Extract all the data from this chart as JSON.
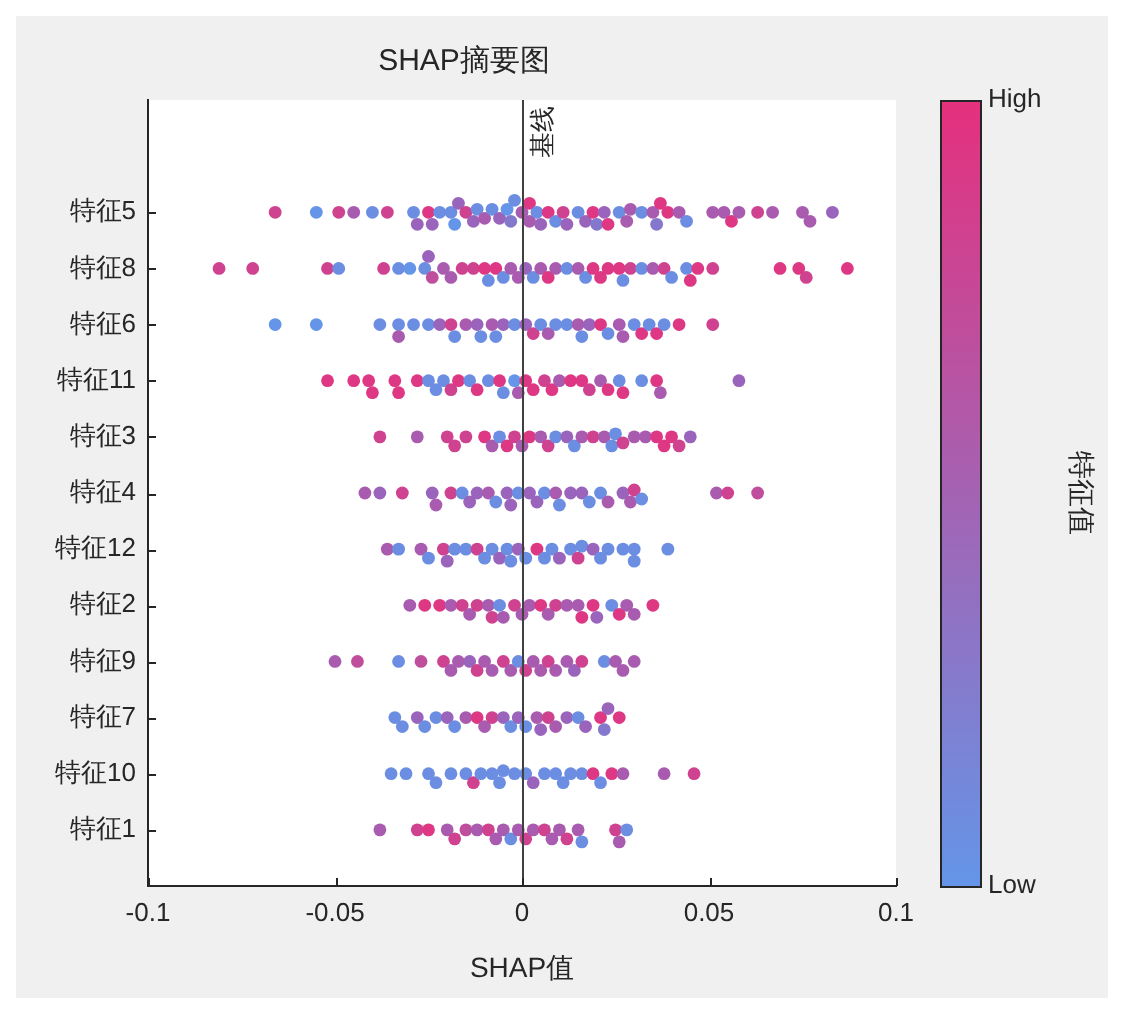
{
  "chart_data": {
    "type": "scatter",
    "title": "SHAP摘要图",
    "xlabel": "SHAP值",
    "clabel": "特征值",
    "orientation": "horizontal",
    "categories": [
      "特征5",
      "特征8",
      "特征6",
      "特征11",
      "特征3",
      "特征4",
      "特征12",
      "特征2",
      "特征9",
      "特征7",
      "特征10",
      "特征1"
    ],
    "xlim": [
      -0.1,
      0.1
    ],
    "xticks": [
      -0.1,
      -0.05,
      0,
      0.05,
      0.1
    ],
    "clim": [
      0,
      1
    ],
    "cticks": [
      {
        "value": 0,
        "label": "Low"
      },
      {
        "value": 1,
        "label": "High"
      }
    ],
    "grid": false,
    "legend": false,
    "marker": "circle",
    "ref_lines": [
      {
        "axis": "x",
        "value": 0,
        "label": "基线",
        "color": "#404040"
      }
    ],
    "series": [
      {
        "x": [
          "特征5",
          "特征5",
          "特征5",
          "特征5",
          "特征5",
          "特征5",
          "特征5",
          "特征5",
          "特征5",
          "特征5",
          "特征5",
          "特征5",
          "特征5",
          "特征5",
          "特征5",
          "特征5",
          "特征5",
          "特征5",
          "特征5",
          "特征5",
          "特征5",
          "特征5",
          "特征5",
          "特征5",
          "特征5",
          "特征5",
          "特征5",
          "特征5",
          "特征5",
          "特征5",
          "特征5",
          "特征5",
          "特征5",
          "特征5",
          "特征5",
          "特征5",
          "特征5",
          "特征5",
          "特征5",
          "特征5",
          "特征5",
          "特征5",
          "特征5",
          "特征5",
          "特征5",
          "特征5",
          "特征5",
          "特征5",
          "特征5",
          "特征5",
          "特征5",
          "特征5",
          "特征5",
          "特征5",
          "特征5",
          "特征5",
          "特征5"
        ],
        "values": [
          -0.066,
          -0.055,
          -0.049,
          -0.045,
          -0.04,
          -0.036,
          -0.029,
          -0.028,
          -0.025,
          -0.024,
          -0.022,
          -0.019,
          -0.018,
          -0.017,
          -0.015,
          -0.013,
          -0.012,
          -0.01,
          -0.008,
          -0.006,
          -0.004,
          -0.003,
          -0.002,
          0,
          0.002,
          0.002,
          0.004,
          0.005,
          0.007,
          0.009,
          0.011,
          0.012,
          0.015,
          0.017,
          0.019,
          0.02,
          0.022,
          0.023,
          0.026,
          0.028,
          0.029,
          0.032,
          0.035,
          0.036,
          0.037,
          0.039,
          0.042,
          0.044,
          0.051,
          0.054,
          0.056,
          0.058,
          0.063,
          0.067,
          0.075,
          0.077,
          0.083
        ],
        "colors": [
          "#cf4290",
          "#6495e8",
          "#cf4290",
          "#a95bb0",
          "#6c8ee2",
          "#cf4290",
          "#6c8ee2",
          "#9a63bc",
          "#de3784",
          "#9a63bc",
          "#6c8ee2",
          "#6c8ee2",
          "#6495e8",
          "#9a63bc",
          "#cf4290",
          "#9a63bc",
          "#6c8ee2",
          "#a95bb0",
          "#6c8ee2",
          "#9a63bc",
          "#6495e8",
          "#8478cc",
          "#6c8ee2",
          "#a95bb0",
          "#a95bb0",
          "#de3784",
          "#6c8ee2",
          "#9a63bc",
          "#de3784",
          "#6c8ee2",
          "#cf4290",
          "#9a63bc",
          "#6c8ee2",
          "#9a63bc",
          "#de3784",
          "#8478cc",
          "#9a63bc",
          "#de3784",
          "#6c8ee2",
          "#a95bb0",
          "#a95bb0",
          "#6c8ee2",
          "#a95bb0",
          "#8478cc",
          "#de3784",
          "#de3784",
          "#a95bb0",
          "#6c8ee2",
          "#a95bb0",
          "#a95bb0",
          "#de3784",
          "#a95bb0",
          "#cf4290",
          "#a95bb0",
          "#a95bb0",
          "#a95bb0",
          "#9a63bc"
        ]
      },
      {
        "x": [
          "特征8",
          "特征8",
          "特征8",
          "特征8",
          "特征8",
          "特征8",
          "特征8",
          "特征8",
          "特征8",
          "特征8",
          "特征8",
          "特征8",
          "特征8",
          "特征8",
          "特征8",
          "特征8",
          "特征8",
          "特征8",
          "特征8",
          "特征8",
          "特征8",
          "特征8",
          "特征8",
          "特征8",
          "特征8",
          "特征8",
          "特征8",
          "特征8",
          "特征8",
          "特征8",
          "特征8",
          "特征8",
          "特征8",
          "特征8",
          "特征8",
          "特征8",
          "特征8",
          "特征8",
          "特征8",
          "特征8",
          "特征8",
          "特征8",
          "特征8",
          "特征8",
          "特征8",
          "特征8"
        ],
        "values": [
          -0.081,
          -0.072,
          -0.052,
          -0.049,
          -0.037,
          -0.033,
          -0.03,
          -0.026,
          -0.024,
          -0.025,
          -0.021,
          -0.019,
          -0.016,
          -0.013,
          -0.01,
          -0.009,
          -0.007,
          -0.005,
          -0.003,
          -0.001,
          0.001,
          0.003,
          0.005,
          0.007,
          0.009,
          0.012,
          0.015,
          0.017,
          0.019,
          0.021,
          0.023,
          0.026,
          0.027,
          0.029,
          0.032,
          0.035,
          0.038,
          0.04,
          0.044,
          0.045,
          0.047,
          0.051,
          0.069,
          0.074,
          0.076,
          0.087
        ],
        "colors": [
          "#cf4290",
          "#cf4290",
          "#cf4290",
          "#6c8ee2",
          "#cf4290",
          "#6c8ee2",
          "#6495e8",
          "#6c8ee2",
          "#bf4f9d",
          "#9a63bc",
          "#a95bb0",
          "#a95bb0",
          "#cf4290",
          "#cf4290",
          "#de3784",
          "#6c8ee2",
          "#de3784",
          "#6c8ee2",
          "#a95bb0",
          "#a95bb0",
          "#9a63bc",
          "#6c8ee2",
          "#a95bb0",
          "#de3784",
          "#a95bb0",
          "#6c8ee2",
          "#a95bb0",
          "#6c8ee2",
          "#de3784",
          "#de3784",
          "#de3784",
          "#de3784",
          "#6c8ee2",
          "#cf4290",
          "#6c8ee2",
          "#a95bb0",
          "#cf4290",
          "#6c8ee2",
          "#6c8ee2",
          "#de3784",
          "#de3784",
          "#cf4290",
          "#de3784",
          "#de3784",
          "#cf4290",
          "#de3784"
        ]
      },
      {
        "x": [
          "特征6",
          "特征6",
          "特征6",
          "特征6",
          "特征6",
          "特征6",
          "特征6",
          "特征6",
          "特征6",
          "特征6",
          "特征6",
          "特征6",
          "特征6",
          "特征6",
          "特征6",
          "特征6",
          "特征6",
          "特征6",
          "特征6",
          "特征6",
          "特征6",
          "特征6",
          "特征6",
          "特征6",
          "特征6",
          "特征6",
          "特征6",
          "特征6",
          "特征6",
          "特征6",
          "特征6",
          "特征6",
          "特征6",
          "特征6",
          "特征6",
          "特征6",
          "特征6"
        ],
        "values": [
          -0.066,
          -0.055,
          -0.038,
          -0.033,
          -0.033,
          -0.029,
          -0.025,
          -0.022,
          -0.019,
          -0.018,
          -0.015,
          -0.012,
          -0.011,
          -0.008,
          -0.007,
          -0.005,
          -0.002,
          0.001,
          0.003,
          0.005,
          0.007,
          0.009,
          0.012,
          0.015,
          0.016,
          0.018,
          0.021,
          0.023,
          0.026,
          0.027,
          0.03,
          0.032,
          0.034,
          0.036,
          0.038,
          0.042,
          0.051
        ],
        "colors": [
          "#6495e8",
          "#6495e8",
          "#6c8ee2",
          "#6c8ee2",
          "#a95bb0",
          "#6c8ee2",
          "#6c8ee2",
          "#9a63bc",
          "#cf4290",
          "#6c8ee2",
          "#a95bb0",
          "#9a63bc",
          "#6c8ee2",
          "#a95bb0",
          "#6c8ee2",
          "#9a63bc",
          "#6c8ee2",
          "#9a63bc",
          "#cf4290",
          "#6c8ee2",
          "#a95bb0",
          "#6c8ee2",
          "#6c8ee2",
          "#a95bb0",
          "#6c8ee2",
          "#9a63bc",
          "#de3784",
          "#6c8ee2",
          "#a95bb0",
          "#a95bb0",
          "#6c8ee2",
          "#de3784",
          "#6c8ee2",
          "#de3784",
          "#6c8ee2",
          "#de3784",
          "#cf4290"
        ]
      },
      {
        "x": [
          "特征11",
          "特征11",
          "特征11",
          "特征11",
          "特征11",
          "特征11",
          "特征11",
          "特征11",
          "特征11",
          "特征11",
          "特征11",
          "特征11",
          "特征11",
          "特征11",
          "特征11",
          "特征11",
          "特征11",
          "特征11",
          "特征11",
          "特征11",
          "特征11",
          "特征11",
          "特征11",
          "特征11",
          "特征11",
          "特征11",
          "特征11",
          "特征11",
          "特征11",
          "特征11",
          "特征11",
          "特征11",
          "特征11",
          "特征11",
          "特征11"
        ],
        "values": [
          -0.052,
          -0.045,
          -0.041,
          -0.04,
          -0.034,
          -0.033,
          -0.028,
          -0.025,
          -0.023,
          -0.021,
          -0.019,
          -0.017,
          -0.014,
          -0.012,
          -0.009,
          -0.006,
          -0.005,
          -0.002,
          -0.001,
          0.001,
          0.003,
          0.006,
          0.008,
          0.01,
          0.013,
          0.016,
          0.018,
          0.021,
          0.023,
          0.026,
          0.027,
          0.032,
          0.036,
          0.037,
          0.058
        ],
        "colors": [
          "#de3784",
          "#de3784",
          "#de3784",
          "#de3784",
          "#de3784",
          "#de3784",
          "#de3784",
          "#6c8ee2",
          "#6c8ee2",
          "#6c8ee2",
          "#cf4290",
          "#de3784",
          "#6c8ee2",
          "#de3784",
          "#6c8ee2",
          "#de3784",
          "#6c8ee2",
          "#6495e8",
          "#a95bb0",
          "#de3784",
          "#de3784",
          "#cf4290",
          "#de3784",
          "#a95bb0",
          "#de3784",
          "#de3784",
          "#cf4290",
          "#a95bb0",
          "#de3784",
          "#6c8ee2",
          "#de3784",
          "#6c8ee2",
          "#de3784",
          "#a95bb0",
          "#9a63bc"
        ]
      },
      {
        "x": [
          "特征3",
          "特征3",
          "特征3",
          "特征3",
          "特征3",
          "特征3",
          "特征3",
          "特征3",
          "特征3",
          "特征3",
          "特征3",
          "特征3",
          "特征3",
          "特征3",
          "特征3",
          "特征3",
          "特征3",
          "特征3",
          "特征3",
          "特征3",
          "特征3",
          "特征3",
          "特征3",
          "特征3",
          "特征3",
          "特征3",
          "特征3",
          "特征3",
          "特征3",
          "特征3"
        ],
        "values": [
          -0.038,
          -0.028,
          -0.02,
          -0.018,
          -0.015,
          -0.01,
          -0.008,
          -0.006,
          -0.004,
          -0.002,
          0,
          0.002,
          0.005,
          0.007,
          0.009,
          0.012,
          0.014,
          0.016,
          0.019,
          0.022,
          0.024,
          0.025,
          0.027,
          0.03,
          0.033,
          0.036,
          0.038,
          0.04,
          0.042,
          0.045
        ],
        "colors": [
          "#cf4290",
          "#a95bb0",
          "#cf4290",
          "#cf4290",
          "#cf4290",
          "#de3784",
          "#a95bb0",
          "#6c8ee2",
          "#de3784",
          "#cf4290",
          "#a95bb0",
          "#de3784",
          "#a95bb0",
          "#cf4290",
          "#6c8ee2",
          "#9a63bc",
          "#6c8ee2",
          "#a95bb0",
          "#cf4290",
          "#a95bb0",
          "#6c8ee2",
          "#6c8ee2",
          "#cf4290",
          "#a95bb0",
          "#a95bb0",
          "#de3784",
          "#de3784",
          "#de3784",
          "#cf4290",
          "#9a63bc"
        ]
      },
      {
        "x": [
          "特征4",
          "特征4",
          "特征4",
          "特征4",
          "特征4",
          "特征4",
          "特征4",
          "特征4",
          "特征4",
          "特征4",
          "特征4",
          "特征4",
          "特征4",
          "特征4",
          "特征4",
          "特征4",
          "特征4",
          "特征4",
          "特征4",
          "特征4",
          "特征4",
          "特征4",
          "特征4",
          "特征4",
          "特征4",
          "特征4",
          "特征4",
          "特征4",
          "特征4",
          "特征4",
          "特征4"
        ],
        "values": [
          -0.042,
          -0.038,
          -0.032,
          -0.024,
          -0.023,
          -0.019,
          -0.016,
          -0.014,
          -0.012,
          -0.009,
          -0.007,
          -0.004,
          -0.003,
          -0.001,
          0.002,
          0.004,
          0.006,
          0.009,
          0.01,
          0.013,
          0.016,
          0.018,
          0.021,
          0.023,
          0.027,
          0.029,
          0.03,
          0.032,
          0.052,
          0.055,
          0.063
        ],
        "colors": [
          "#a95bb0",
          "#9a63bc",
          "#cf4290",
          "#9a63bc",
          "#a95bb0",
          "#cf4290",
          "#6c8ee2",
          "#9a63bc",
          "#9a63bc",
          "#a95bb0",
          "#6c8ee2",
          "#9a63bc",
          "#9a63bc",
          "#6c8ee2",
          "#9a63bc",
          "#9a63bc",
          "#6c8ee2",
          "#a95bb0",
          "#6c8ee2",
          "#9a63bc",
          "#9a63bc",
          "#6c8ee2",
          "#6c8ee2",
          "#a95bb0",
          "#9a63bc",
          "#a95bb0",
          "#cf4290",
          "#6c8ee2",
          "#a95bb0",
          "#cf4290",
          "#bf4f9d"
        ]
      },
      {
        "x": [
          "特征12",
          "特征12",
          "特征12",
          "特征12",
          "特征12",
          "特征12",
          "特征12",
          "特征12",
          "特征12",
          "特征12",
          "特征12",
          "特征12",
          "特征12",
          "特征12",
          "特征12",
          "特征12",
          "特征12",
          "特征12",
          "特征12",
          "特征12",
          "特征12",
          "特征12",
          "特征12",
          "特征12",
          "特征12",
          "特征12",
          "特征12",
          "特征12",
          "特征12",
          "特征12"
        ],
        "values": [
          -0.036,
          -0.033,
          -0.027,
          -0.025,
          -0.021,
          -0.02,
          -0.018,
          -0.015,
          -0.012,
          -0.01,
          -0.008,
          -0.006,
          -0.004,
          -0.003,
          -0.001,
          0.001,
          0.004,
          0.006,
          0.008,
          0.01,
          0.013,
          0.015,
          0.016,
          0.019,
          0.021,
          0.023,
          0.027,
          0.03,
          0.03,
          0.039
        ],
        "colors": [
          "#a95bb0",
          "#6c8ee2",
          "#a95bb0",
          "#6c8ee2",
          "#cf4290",
          "#9a63bc",
          "#6c8ee2",
          "#6c8ee2",
          "#cf4290",
          "#6c8ee2",
          "#6c8ee2",
          "#9a63bc",
          "#6c8ee2",
          "#6c8ee2",
          "#9a63bc",
          "#6c8ee2",
          "#de3784",
          "#6c8ee2",
          "#6c8ee2",
          "#9a63bc",
          "#6c8ee2",
          "#cf4290",
          "#6c8ee2",
          "#9a63bc",
          "#6c8ee2",
          "#6c8ee2",
          "#6c8ee2",
          "#6c8ee2",
          "#6c8ee2",
          "#6c8ee2"
        ]
      },
      {
        "x": [
          "特征2",
          "特征2",
          "特征2",
          "特征2",
          "特征2",
          "特征2",
          "特征2",
          "特征2",
          "特征2",
          "特征2",
          "特征2",
          "特征2",
          "特征2",
          "特征2",
          "特征2",
          "特征2",
          "特征2",
          "特征2",
          "特征2",
          "特征2",
          "特征2",
          "特征2",
          "特征2",
          "特征2",
          "特征2",
          "特征2",
          "特征2"
        ],
        "values": [
          -0.03,
          -0.026,
          -0.022,
          -0.019,
          -0.016,
          -0.014,
          -0.012,
          -0.009,
          -0.008,
          -0.006,
          -0.005,
          -0.002,
          0,
          0.002,
          0.005,
          0.007,
          0.009,
          0.012,
          0.015,
          0.016,
          0.019,
          0.02,
          0.024,
          0.026,
          0.028,
          0.03,
          0.035
        ],
        "colors": [
          "#a95bb0",
          "#de3784",
          "#de3784",
          "#a95bb0",
          "#cf4290",
          "#a95bb0",
          "#cf4290",
          "#a95bb0",
          "#cf4290",
          "#6c8ee2",
          "#a95bb0",
          "#cf4290",
          "#a95bb0",
          "#a95bb0",
          "#de3784",
          "#a95bb0",
          "#cf4290",
          "#a95bb0",
          "#a95bb0",
          "#de3784",
          "#de3784",
          "#9a63bc",
          "#6c8ee2",
          "#de3784",
          "#a95bb0",
          "#a95bb0",
          "#de3784"
        ]
      },
      {
        "x": [
          "特征9",
          "特征9",
          "特征9",
          "特征9",
          "特征9",
          "特征9",
          "特征9",
          "特征9",
          "特征9",
          "特征9",
          "特征9",
          "特征9",
          "特征9",
          "特征9",
          "特征9",
          "特征9",
          "特征9",
          "特征9",
          "特征9",
          "特征9",
          "特征9",
          "特征9",
          "特征9",
          "特征9",
          "特征9",
          "特征9"
        ],
        "values": [
          -0.05,
          -0.044,
          -0.033,
          -0.027,
          -0.021,
          -0.019,
          -0.017,
          -0.014,
          -0.012,
          -0.01,
          -0.008,
          -0.005,
          -0.003,
          -0.001,
          0.001,
          0.003,
          0.005,
          0.007,
          0.009,
          0.012,
          0.014,
          0.016,
          0.022,
          0.025,
          0.027,
          0.03
        ],
        "colors": [
          "#a95bb0",
          "#bf4f9d",
          "#6c8ee2",
          "#bf4f9d",
          "#cf4290",
          "#a95bb0",
          "#a95bb0",
          "#9a63bc",
          "#cf4290",
          "#a95bb0",
          "#a95bb0",
          "#cf4290",
          "#a95bb0",
          "#6c8ee2",
          "#cf4290",
          "#a95bb0",
          "#a95bb0",
          "#cf4290",
          "#a95bb0",
          "#a95bb0",
          "#9a63bc",
          "#cf4290",
          "#6c8ee2",
          "#a95bb0",
          "#a95bb0",
          "#a95bb0"
        ]
      },
      {
        "x": [
          "特征7",
          "特征7",
          "特征7",
          "特征7",
          "特征7",
          "特征7",
          "特征7",
          "特征7",
          "特征7",
          "特征7",
          "特征7",
          "特征7",
          "特征7",
          "特征7",
          "特征7",
          "特征7",
          "特征7",
          "特征7",
          "特征7",
          "特征7",
          "特征7",
          "特征7",
          "特征7",
          "特征7",
          "特征7",
          "特征7"
        ],
        "values": [
          -0.034,
          -0.032,
          -0.028,
          -0.026,
          -0.023,
          -0.02,
          -0.018,
          -0.015,
          -0.012,
          -0.01,
          -0.008,
          -0.005,
          -0.003,
          -0.001,
          0.001,
          0.004,
          0.005,
          0.007,
          0.009,
          0.012,
          0.015,
          0.017,
          0.021,
          0.022,
          0.023,
          0.026
        ],
        "colors": [
          "#6c8ee2",
          "#6c8ee2",
          "#9a63bc",
          "#6c8ee2",
          "#6c8ee2",
          "#9a63bc",
          "#6c8ee2",
          "#a95bb0",
          "#de3784",
          "#a95bb0",
          "#cf4290",
          "#9a63bc",
          "#6c8ee2",
          "#9a63bc",
          "#6c8ee2",
          "#a95bb0",
          "#9a63bc",
          "#cf4290",
          "#a95bb0",
          "#9a63bc",
          "#6c8ee2",
          "#9a63bc",
          "#de3784",
          "#8478cc",
          "#9a63bc",
          "#de3784"
        ]
      },
      {
        "x": [
          "特征10",
          "特征10",
          "特征10",
          "特征10",
          "特征10",
          "特征10",
          "特征10",
          "特征10",
          "特征10",
          "特征10",
          "特征10",
          "特征10",
          "特征10",
          "特征10",
          "特征10",
          "特征10",
          "特征10",
          "特征10",
          "特征10",
          "特征10",
          "特征10",
          "特征10",
          "特征10",
          "特征10",
          "特征10"
        ],
        "values": [
          -0.035,
          -0.031,
          -0.025,
          -0.023,
          -0.019,
          -0.015,
          -0.013,
          -0.011,
          -0.008,
          -0.006,
          -0.005,
          -0.002,
          0.001,
          0.003,
          0.006,
          0.009,
          0.011,
          0.013,
          0.016,
          0.019,
          0.021,
          0.024,
          0.027,
          0.038,
          0.046
        ],
        "colors": [
          "#6c8ee2",
          "#6c8ee2",
          "#6c8ee2",
          "#6c8ee2",
          "#6c8ee2",
          "#6c8ee2",
          "#cf4290",
          "#6c8ee2",
          "#6c8ee2",
          "#6c8ee2",
          "#6c8ee2",
          "#6c8ee2",
          "#6c8ee2",
          "#9a63bc",
          "#6c8ee2",
          "#6c8ee2",
          "#6c8ee2",
          "#6c8ee2",
          "#6c8ee2",
          "#de3784",
          "#6c8ee2",
          "#de3784",
          "#a95bb0",
          "#a95bb0",
          "#cf4290"
        ]
      },
      {
        "x": [
          "特征1",
          "特征1",
          "特征1",
          "特征1",
          "特征1",
          "特征1",
          "特征1",
          "特征1",
          "特征1",
          "特征1",
          "特征1",
          "特征1",
          "特征1",
          "特征1",
          "特征1",
          "特征1",
          "特征1",
          "特征1",
          "特征1",
          "特征1",
          "特征1",
          "特征1",
          "特征1"
        ],
        "values": [
          -0.038,
          -0.028,
          -0.025,
          -0.02,
          -0.018,
          -0.015,
          -0.012,
          -0.009,
          -0.007,
          -0.005,
          -0.003,
          -0.001,
          0.001,
          0.003,
          0.006,
          0.008,
          0.01,
          0.012,
          0.015,
          0.016,
          0.025,
          0.026,
          0.028
        ],
        "colors": [
          "#a95bb0",
          "#cf4290",
          "#de3784",
          "#a95bb0",
          "#cf4290",
          "#bf4f9d",
          "#a95bb0",
          "#cf4290",
          "#a95bb0",
          "#a95bb0",
          "#6c8ee2",
          "#a95bb0",
          "#cf4290",
          "#a95bb0",
          "#cf4290",
          "#a95bb0",
          "#a95bb0",
          "#cf4290",
          "#a95bb0",
          "#6c8ee2",
          "#cf4290",
          "#a95bb0",
          "#6c8ee2"
        ]
      }
    ]
  }
}
